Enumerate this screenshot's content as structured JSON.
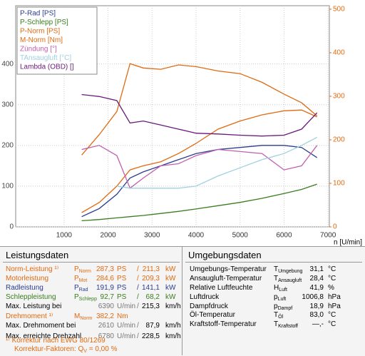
{
  "chart_data": {
    "type": "line",
    "xlabel": "n [U/min]",
    "x": [
      1400,
      1800,
      2200,
      2500,
      2800,
      3200,
      3600,
      4000,
      4500,
      5000,
      5500,
      6000,
      6400,
      6750
    ],
    "xlim": [
      -100,
      7030
    ],
    "xticks": [
      1000,
      2000,
      3000,
      4000,
      5000,
      6000,
      7000
    ],
    "ylim": [
      0,
      543
    ],
    "yticks": [
      0,
      100,
      200,
      300,
      400
    ],
    "y2lim": [
      0,
      508
    ],
    "y2ticks": [
      0,
      100,
      200,
      300,
      400,
      500
    ],
    "y2color": "#e06a10",
    "grid": true,
    "legend": "upper left",
    "series": [
      {
        "name": "P-Rad [PS]",
        "color": "#2a3d8f",
        "values": [
          25,
          45,
          80,
          120,
          135,
          150,
          165,
          180,
          190,
          195,
          200,
          200,
          195,
          170
        ]
      },
      {
        "name": "P-Schlepp [PS]",
        "color": "#3a7d1e",
        "values": [
          15,
          18,
          22,
          25,
          28,
          33,
          38,
          44,
          52,
          60,
          70,
          82,
          92,
          105
        ]
      },
      {
        "name": "P-Norm [PS]",
        "color": "#e06a10",
        "values": [
          35,
          60,
          100,
          140,
          150,
          160,
          180,
          205,
          240,
          260,
          275,
          285,
          287,
          270
        ]
      },
      {
        "name": "M-Norm [Nm]",
        "color": "#e06a10",
        "axis": "y2",
        "values": [
          165,
          212,
          265,
          375,
          365,
          362,
          372,
          368,
          358,
          352,
          332,
          305,
          285,
          255
        ]
      },
      {
        "name": "Zündung [°]",
        "color": "#c060b0",
        "values": [
          190,
          200,
          175,
          95,
          120,
          150,
          155,
          175,
          190,
          185,
          180,
          140,
          150,
          200
        ]
      },
      {
        "name": "TAnsaugluft [°C]",
        "color": "#a0d0e0",
        "values": [
          null,
          null,
          100,
          95,
          95,
          95,
          95,
          100,
          125,
          145,
          165,
          180,
          200,
          220
        ]
      },
      {
        "name": "Lambda (OBD) []",
        "color": "#6a1a7a",
        "values": [
          325,
          320,
          310,
          255,
          260,
          250,
          240,
          230,
          228,
          225,
          223,
          225,
          240,
          280
        ]
      }
    ]
  },
  "leistung": {
    "title": "Leistungsdaten",
    "rows": [
      {
        "label": "Norm-Leistung ¹⁾",
        "color": "#e06a10",
        "sym": "P",
        "sub": "Norm",
        "v1": "287,3",
        "u1": "PS",
        "sep": "/",
        "v2": "211,3",
        "u2": "kW"
      },
      {
        "label": "Motorleistung",
        "color": "#e06a10",
        "sym": "P",
        "sub": "Mot",
        "v1": "284,6",
        "u1": "PS",
        "sep": "/",
        "v2": "209,3",
        "u2": "kW"
      },
      {
        "label": "Radleistung",
        "color": "#2a3d8f",
        "sym": "P",
        "sub": "Rad",
        "v1": "191,9",
        "u1": "PS",
        "sep": "/",
        "v2": "141,1",
        "u2": "kW"
      },
      {
        "label": "Schleppleistung",
        "color": "#3a7d1e",
        "sym": "P",
        "sub": "Schlepp",
        "v1": "92,7",
        "u1": "PS",
        "sep": "/",
        "v2": "68,2",
        "u2": "kW"
      },
      {
        "label": "Max. Leistung bei",
        "color": "#000",
        "v1": "6390",
        "u1": "U/min",
        "sep": "/",
        "v2": "215,3",
        "u2": "km/h"
      },
      {
        "label": "Drehmoment ¹⁾",
        "color": "#e06a10",
        "sym": "M",
        "sub": "Norm",
        "v1": "382,2",
        "u1": "Nm"
      },
      {
        "label": "Max. Drehmoment bei",
        "color": "#000",
        "v1": "2610",
        "u1": "U/min",
        "sep": "/",
        "v2": "87,9",
        "u2": "km/h"
      },
      {
        "label": "Max. erreichte Drehzahl",
        "color": "#000",
        "v1": "6780",
        "u1": "U/min",
        "sep": "/",
        "v2": "228,5",
        "u2": "km/h"
      }
    ],
    "notes": [
      {
        "text": "¹⁾ Korrektur nach EWG 80/1269"
      },
      {
        "text": "Korrektur-Faktoren: Q",
        "sub": "V",
        "after": " =   0,00 %"
      }
    ]
  },
  "umgebung": {
    "title": "Umgebungsdaten",
    "rows": [
      {
        "label": "Umgebungs-Temperatur",
        "sym": "T",
        "sub": "Umgebung",
        "v": "31,1",
        "u": "°C"
      },
      {
        "label": "Ansaugluft-Temperatur",
        "sym": "T",
        "sub": "Ansaugluft",
        "v": "28,4",
        "u": "°C"
      },
      {
        "label": "Relative Luftfeuchte",
        "sym": "H",
        "sub": "Luft",
        "v": "41,9",
        "u": "%"
      },
      {
        "label": "Luftdruck",
        "sym": "p",
        "sub": "Luft",
        "v": "1006,8",
        "u": "hPa"
      },
      {
        "label": "Dampfdruck",
        "sym": "p",
        "sub": "Dampf",
        "v": "18,9",
        "u": "hPa"
      },
      {
        "label": "Öl-Temperatur",
        "sym": "T",
        "sub": "Öl",
        "v": "83,0",
        "u": "°C"
      },
      {
        "label": "Kraftstoff-Temperatur",
        "sym": "T",
        "sub": "Kraftstoff",
        "v": "—,-",
        "u": "°C"
      }
    ]
  }
}
